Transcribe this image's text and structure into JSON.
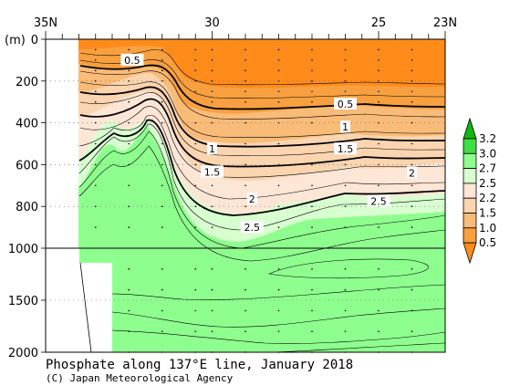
{
  "chart_data": {
    "type": "contour",
    "title": "Phosphate along 137°E line, January 2018",
    "credit": "(C) Japan Meteorological Agency",
    "xlabel": "",
    "ylabel": "(m)",
    "x_ticks": [
      "35N",
      "30",
      "25",
      "23N"
    ],
    "x_tick_lat": [
      35,
      30,
      25,
      23
    ],
    "y_ticks": [
      0,
      200,
      400,
      600,
      800,
      1000,
      1500,
      2000
    ],
    "levels": [
      0.5,
      1.0,
      1.5,
      2.0,
      2.2,
      2.5,
      2.7,
      3.0,
      3.2
    ],
    "legend_labels": [
      "3.2",
      "3.0",
      "2.7",
      "2.5",
      "2.2",
      "1.5",
      "1.0",
      "0.5"
    ],
    "contour_labels": [
      {
        "text": "0.5",
        "lat": 32.4,
        "depth": 100
      },
      {
        "text": "0.5",
        "lat": 26.0,
        "depth": 310
      },
      {
        "text": "1",
        "lat": 30.0,
        "depth": 525
      },
      {
        "text": "1",
        "lat": 26.0,
        "depth": 420
      },
      {
        "text": "1.5",
        "lat": 30.0,
        "depth": 635
      },
      {
        "text": "1.5",
        "lat": 26.0,
        "depth": 525
      },
      {
        "text": "2",
        "lat": 28.8,
        "depth": 765
      },
      {
        "text": "2",
        "lat": 24.0,
        "depth": 640
      },
      {
        "text": "2.5",
        "lat": 28.8,
        "depth": 900
      },
      {
        "text": "2.5",
        "lat": 25.0,
        "depth": 775
      }
    ],
    "colors": {
      "lt_0.5": "#ff8c1a",
      "0.5_1.0": "#f8a040",
      "1.0_1.5": "#f9bb78",
      "1.5_2.2": "#fbd4b0",
      "2.2_2.5": "#fde6d6",
      "2.5_2.7": "#d8ffd0",
      "2.7_3.0": "#8eff8e",
      "3.0_3.2": "#42dd42",
      "gt_3.2": "#10b810"
    }
  }
}
